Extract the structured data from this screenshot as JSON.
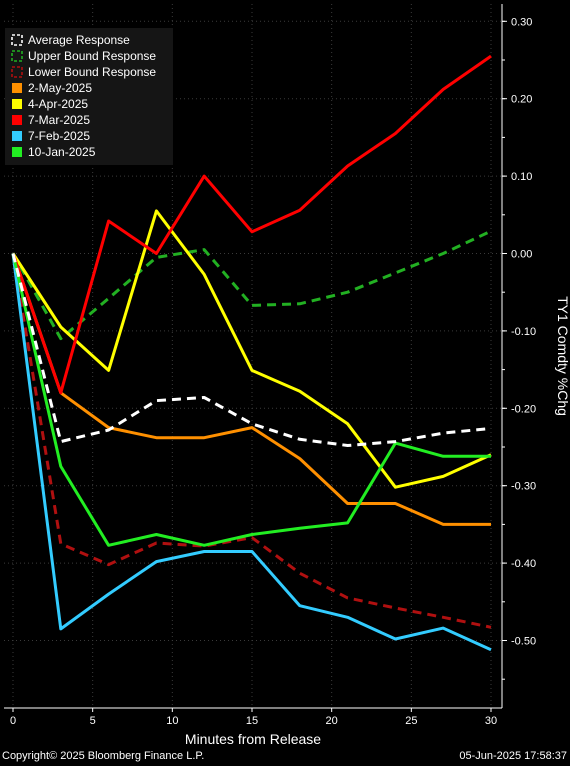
{
  "chart_data": {
    "type": "line",
    "xlabel": "Minutes from Release",
    "ylabel": "TY1 Comdty %Chg",
    "xlim": [
      0,
      30
    ],
    "ylim": [
      -0.55,
      0.32
    ],
    "x_ticks": [
      0,
      5,
      10,
      15,
      20,
      25,
      30
    ],
    "x_tick_labels": [
      "0",
      "5",
      "10",
      "15",
      "20",
      "25",
      "30"
    ],
    "y_ticks": [
      -0.5,
      -0.4,
      -0.3,
      -0.2,
      -0.1,
      0.0,
      0.1,
      0.2,
      0.3
    ],
    "y_tick_labels": [
      "-0.50",
      "-0.40",
      "-0.30",
      "-0.20",
      "-0.10",
      "0.00",
      "0.10",
      "0.20",
      "0.30"
    ],
    "grid": true,
    "legend_position": "top-left",
    "x": [
      0,
      3,
      6,
      9,
      12,
      15,
      18,
      21,
      24,
      27,
      30
    ],
    "series": [
      {
        "name": "Average Response",
        "color": "#ffffff",
        "dashed": true,
        "values": [
          0.0,
          -0.243,
          -0.228,
          -0.19,
          -0.186,
          -0.22,
          -0.24,
          -0.248,
          -0.243,
          -0.232,
          -0.226
        ]
      },
      {
        "name": "Upper Bound Response",
        "color": "#22b022",
        "dashed": true,
        "values": [
          0.0,
          -0.11,
          -0.058,
          -0.005,
          0.005,
          -0.067,
          -0.065,
          -0.05,
          -0.025,
          0.0,
          0.029
        ]
      },
      {
        "name": "Lower Bound Response",
        "color": "#b01010",
        "dashed": true,
        "values": [
          0.0,
          -0.375,
          -0.402,
          -0.374,
          -0.378,
          -0.367,
          -0.413,
          -0.445,
          -0.458,
          -0.47,
          -0.483
        ]
      },
      {
        "name": "2-May-2025",
        "color": "#ff9000",
        "dashed": false,
        "values": [
          0.0,
          -0.18,
          -0.225,
          -0.238,
          -0.238,
          -0.225,
          -0.265,
          -0.323,
          -0.323,
          -0.35,
          -0.35
        ]
      },
      {
        "name": "4-Apr-2025",
        "color": "#ffff00",
        "dashed": false,
        "values": [
          0.0,
          -0.095,
          -0.151,
          0.055,
          -0.027,
          -0.151,
          -0.178,
          -0.22,
          -0.302,
          -0.288,
          -0.26
        ]
      },
      {
        "name": "7-Mar-2025",
        "color": "#ff0000",
        "dashed": false,
        "values": [
          0.0,
          -0.18,
          0.042,
          0.0,
          0.1,
          0.028,
          0.056,
          0.113,
          0.155,
          0.212,
          0.255
        ]
      },
      {
        "name": "7-Feb-2025",
        "color": "#33ccff",
        "dashed": false,
        "values": [
          0.0,
          -0.485,
          -0.44,
          -0.398,
          -0.385,
          -0.385,
          -0.455,
          -0.47,
          -0.498,
          -0.484,
          -0.512
        ]
      },
      {
        "name": "10-Jan-2025",
        "color": "#22ee22",
        "dashed": false,
        "values": [
          0.0,
          -0.275,
          -0.377,
          -0.363,
          -0.377,
          -0.363,
          -0.355,
          -0.348,
          -0.245,
          -0.262,
          -0.262
        ]
      }
    ]
  },
  "footer": {
    "copyright": "Copyright© 2025 Bloomberg Finance L.P.",
    "timestamp": "05-Jun-2025 17:58:37"
  }
}
